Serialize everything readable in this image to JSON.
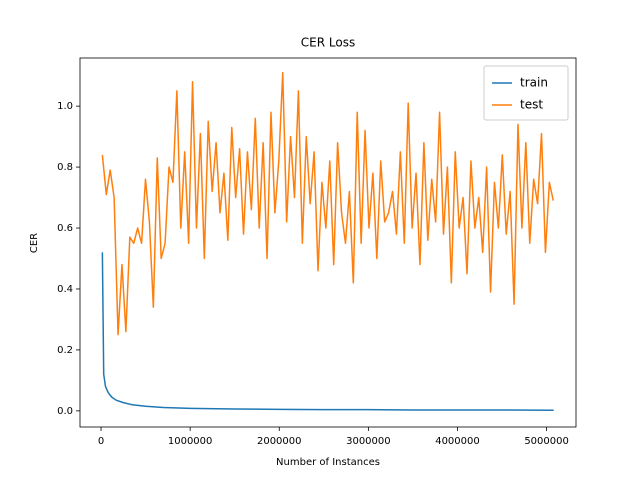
{
  "chart_data": {
    "type": "line",
    "title": "CER Loss",
    "xlabel": "Number of Instances",
    "ylabel": "CER",
    "xlim": [
      -236000,
      5330000
    ],
    "ylim": [
      -0.053,
      1.158
    ],
    "xticks": [
      0,
      1000000,
      2000000,
      3000000,
      4000000,
      5000000
    ],
    "yticks": [
      {
        "value": 0,
        "label": "0.0"
      },
      0.2,
      0.4,
      0.6,
      0.8,
      {
        "value": 1,
        "label": "1.0"
      }
    ],
    "legend": "upper right",
    "grid": false,
    "series": [
      {
        "name": "train",
        "color": "#1f77b4",
        "x": [
          15000,
          30000,
          50000,
          80000,
          120000,
          170000,
          250000,
          350000,
          500000,
          700000,
          1000000,
          1500000,
          2000000,
          2500000,
          3000000,
          3500000,
          4000000,
          4500000,
          5080000
        ],
        "values": [
          0.52,
          0.12,
          0.08,
          0.06,
          0.045,
          0.035,
          0.027,
          0.02,
          0.015,
          0.011,
          0.008,
          0.006,
          0.005,
          0.004,
          0.004,
          0.003,
          0.003,
          0.003,
          0.002
        ]
      },
      {
        "name": "test",
        "color": "#ff7f0e",
        "x": [
          15000,
          59000,
          103000,
          147000,
          191000,
          235000,
          279000,
          323000,
          367000,
          411000,
          455000,
          499000,
          543000,
          587000,
          631000,
          675000,
          719000,
          763000,
          807000,
          851000,
          895000,
          939000,
          983000,
          1027000,
          1071000,
          1115000,
          1159000,
          1203000,
          1247000,
          1291000,
          1335000,
          1379000,
          1423000,
          1467000,
          1511000,
          1555000,
          1599000,
          1643000,
          1687000,
          1731000,
          1775000,
          1819000,
          1863000,
          1907000,
          1951000,
          1995000,
          2039000,
          2083000,
          2127000,
          2171000,
          2215000,
          2259000,
          2303000,
          2347000,
          2391000,
          2435000,
          2479000,
          2523000,
          2567000,
          2611000,
          2655000,
          2699000,
          2743000,
          2787000,
          2831000,
          2875000,
          2919000,
          2963000,
          3007000,
          3051000,
          3095000,
          3139000,
          3183000,
          3227000,
          3271000,
          3315000,
          3359000,
          3403000,
          3447000,
          3491000,
          3535000,
          3579000,
          3623000,
          3667000,
          3711000,
          3755000,
          3799000,
          3843000,
          3887000,
          3931000,
          3975000,
          4019000,
          4063000,
          4107000,
          4151000,
          4195000,
          4239000,
          4283000,
          4327000,
          4371000,
          4415000,
          4459000,
          4503000,
          4547000,
          4591000,
          4635000,
          4679000,
          4723000,
          4767000,
          4811000,
          4855000,
          4899000,
          4943000,
          4987000,
          5031000,
          5075000
        ],
        "values": [
          0.84,
          0.71,
          0.79,
          0.7,
          0.25,
          0.48,
          0.26,
          0.57,
          0.55,
          0.6,
          0.55,
          0.76,
          0.62,
          0.34,
          0.83,
          0.5,
          0.55,
          0.8,
          0.75,
          1.05,
          0.6,
          0.85,
          0.55,
          1.08,
          0.6,
          0.91,
          0.5,
          0.95,
          0.72,
          0.88,
          0.65,
          0.78,
          0.56,
          0.93,
          0.7,
          0.86,
          0.58,
          0.85,
          0.66,
          0.96,
          0.6,
          0.88,
          0.5,
          0.98,
          0.65,
          0.82,
          1.11,
          0.62,
          0.9,
          0.7,
          1.05,
          0.55,
          0.9,
          0.68,
          0.85,
          0.46,
          0.75,
          0.6,
          0.82,
          0.48,
          0.88,
          0.65,
          0.55,
          0.72,
          0.42,
          0.98,
          0.55,
          0.92,
          0.6,
          0.78,
          0.5,
          0.82,
          0.62,
          0.65,
          0.72,
          0.58,
          0.85,
          0.55,
          1.01,
          0.6,
          0.78,
          0.48,
          0.88,
          0.56,
          0.76,
          0.62,
          0.98,
          0.58,
          0.8,
          0.42,
          0.85,
          0.6,
          0.7,
          0.45,
          0.82,
          0.6,
          0.7,
          0.52,
          0.8,
          0.39,
          0.75,
          0.6,
          0.84,
          0.58,
          0.72,
          0.35,
          0.94,
          0.6,
          0.88,
          0.55,
          0.76,
          0.68,
          0.91,
          0.52,
          0.75,
          0.69
        ]
      }
    ]
  }
}
